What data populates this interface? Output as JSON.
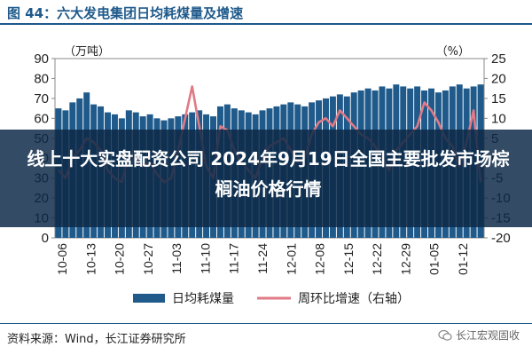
{
  "header": {
    "title": "图 44：六大发电集团日均耗煤量及增速"
  },
  "overlay": {
    "headline": "线上十大实盘配资公司 2024年9月19日全国主要批发市场棕榈油价格行情"
  },
  "footer": {
    "source": "资料来源：Wind，长江证券研究所",
    "brand": "长江宏观固收"
  },
  "colors": {
    "bar": "#1f5a8b",
    "line": "#e07a86",
    "title": "#1f5a8b"
  },
  "chart_data": {
    "type": "bar",
    "left_axis_unit": "（万吨）",
    "right_axis_unit": "（%）",
    "left_ylim": [
      0,
      90
    ],
    "right_ylim": [
      -20,
      25
    ],
    "left_ticks": [
      "0",
      "10",
      "20",
      "30",
      "40",
      "50",
      "60",
      "70",
      "80",
      "90"
    ],
    "right_ticks": [
      "-20",
      "-15",
      "-10",
      "-5",
      "0",
      "5",
      "10",
      "15",
      "20",
      "25"
    ],
    "x_tick_labels": [
      "10-06",
      "10-13",
      "10-20",
      "10-27",
      "11-03",
      "11-10",
      "11-17",
      "11-24",
      "12-01",
      "12-08",
      "12-15",
      "12-22",
      "12-29",
      "01-05",
      "01-12"
    ],
    "legend": [
      "日均耗煤量",
      "周环比增速（右轴）"
    ],
    "series": [
      {
        "name": "日均耗煤量",
        "type": "bar",
        "axis": "left",
        "values": [
          65,
          64,
          68,
          70,
          73,
          67,
          66,
          63,
          62,
          60,
          64,
          63,
          61,
          62,
          60,
          59,
          60,
          61,
          62,
          63,
          64,
          62,
          61,
          66,
          67,
          65,
          64,
          63,
          62,
          64,
          65,
          66,
          67,
          68,
          67,
          66,
          68,
          69,
          70,
          71,
          72,
          71,
          73,
          74,
          75,
          74,
          76,
          75,
          77,
          76,
          75,
          76,
          74,
          75,
          73,
          74,
          76,
          77,
          75,
          76,
          77
        ]
      },
      {
        "name": "周环比增速（右轴）",
        "type": "line",
        "axis": "right",
        "values": [
          -3,
          -5,
          0,
          2,
          5,
          4,
          2,
          -3,
          -5,
          -6,
          1,
          -1,
          -2,
          -1,
          -4,
          -6,
          -5,
          2,
          10,
          18,
          8,
          -2,
          -5,
          8,
          7,
          2,
          -1,
          -3,
          -5,
          0,
          3,
          4,
          5,
          2,
          -1,
          0,
          6,
          9,
          10,
          8,
          12,
          10,
          8,
          6,
          5,
          3,
          0,
          -3,
          2,
          4,
          6,
          8,
          14,
          12,
          9,
          5,
          3,
          -2,
          4,
          12,
          -6
        ]
      }
    ]
  }
}
